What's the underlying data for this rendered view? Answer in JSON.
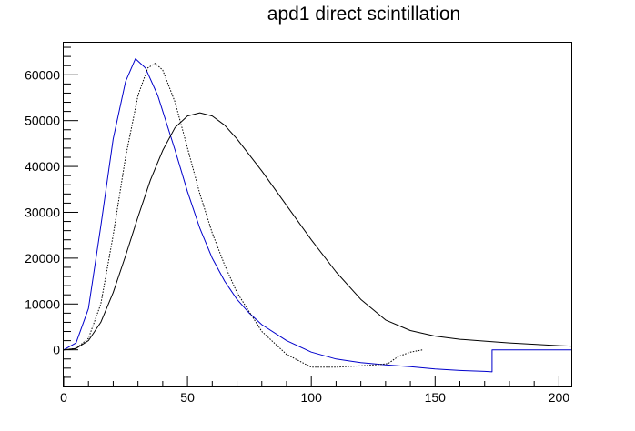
{
  "chart_data": {
    "type": "line",
    "title": "apd1 direct scintillation",
    "xlabel": "",
    "ylabel": "",
    "xlim": [
      0,
      205
    ],
    "ylim": [
      -8000,
      67000
    ],
    "x_ticks": [
      0,
      50,
      100,
      150,
      200
    ],
    "y_ticks": [
      0,
      10000,
      20000,
      30000,
      40000,
      50000,
      60000
    ],
    "grid": false,
    "legend": "none",
    "series": [
      {
        "color": "#0000cc",
        "style": "solid",
        "x": [
          0,
          5,
          10,
          15,
          20,
          25,
          29,
          33,
          38,
          45,
          50,
          55,
          60,
          65,
          70,
          75,
          80,
          90,
          100,
          110,
          120,
          130,
          140,
          150,
          160,
          170,
          173,
          173.01,
          190,
          205
        ],
        "y": [
          0,
          1500,
          9000,
          27000,
          46000,
          58500,
          63500,
          61500,
          55500,
          43500,
          34500,
          26500,
          20000,
          15000,
          11000,
          8000,
          5500,
          2000,
          -500,
          -2000,
          -2800,
          -3300,
          -3700,
          -4200,
          -4500,
          -4700,
          -4800,
          0,
          0,
          0
        ]
      },
      {
        "color": "#000000",
        "style": "dotted",
        "x": [
          0,
          5,
          10,
          15,
          20,
          25,
          30,
          34,
          37,
          40,
          45,
          50,
          55,
          60,
          65,
          70,
          80,
          90,
          100,
          110,
          120,
          128,
          131,
          135,
          140,
          145
        ],
        "y": [
          0,
          300,
          2500,
          10000,
          25000,
          42000,
          55500,
          61500,
          62500,
          61000,
          54000,
          44000,
          34000,
          25500,
          18500,
          12500,
          4000,
          -1000,
          -3800,
          -3800,
          -3500,
          -3200,
          -3000,
          -1500,
          -500,
          0
        ]
      },
      {
        "color": "#000000",
        "style": "solid",
        "x": [
          0,
          5,
          10,
          15,
          20,
          25,
          30,
          35,
          40,
          45,
          50,
          55,
          60,
          65,
          70,
          80,
          90,
          100,
          110,
          120,
          130,
          140,
          150,
          160,
          170,
          180,
          190,
          200,
          205
        ],
        "y": [
          0,
          300,
          2000,
          6000,
          12500,
          20500,
          29000,
          37000,
          43500,
          48500,
          51000,
          51700,
          51000,
          49000,
          46000,
          39000,
          31500,
          24000,
          17000,
          11000,
          6500,
          4200,
          3000,
          2300,
          1900,
          1500,
          1200,
          900,
          800
        ]
      }
    ]
  }
}
